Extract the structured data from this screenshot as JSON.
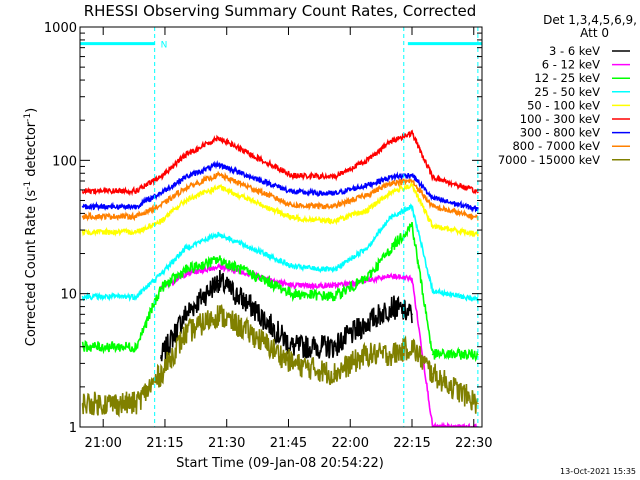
{
  "chart_data": {
    "type": "line",
    "title": "RHESSI Observing Summary Count Rates, Corrected",
    "xlabel": "Start Time (09-Jan-08 20:54:22)",
    "ylabel": "Corrected Count Rate (s",
    "ylabel_sup1": "-1",
    "ylabel_mid": " detector",
    "ylabel_sup2": "-1",
    "ylabel_end": ")",
    "y_scale": "log",
    "ylim": [
      1,
      1000
    ],
    "xlim": [
      "20:54:22",
      "22:32:00"
    ],
    "x_ticks": [
      "21:00",
      "21:15",
      "21:30",
      "21:45",
      "22:00",
      "22:15",
      "22:30"
    ],
    "y_ticks": [
      "1",
      "10",
      "100",
      "1000"
    ],
    "legend_header": [
      "Det 1,3,4,5,6,9,",
      "Att 0"
    ],
    "timestamp": "13-Oct-2021 15:35",
    "flag_label": "N",
    "flags": [
      {
        "start": "20:54:22",
        "end": "21:12:30",
        "value": 750
      },
      {
        "start": "22:14:00",
        "end": "22:32:00",
        "value": 750
      }
    ],
    "vertical_markers": [
      "21:12:30",
      "22:13:00",
      "22:31:00"
    ],
    "x": [
      "20:55",
      "21:08",
      "21:14",
      "21:20",
      "21:28",
      "21:36",
      "21:46",
      "21:56",
      "22:04",
      "22:10",
      "22:15",
      "22:20",
      "22:31"
    ],
    "series": [
      {
        "name": "3 - 6 keV",
        "color": "#000000",
        "values": [
          null,
          null,
          3.3,
          7,
          12.5,
          8,
          4,
          4,
          6,
          8,
          7,
          null,
          null
        ]
      },
      {
        "name": "6 - 12 keV",
        "color": "#ff00ff",
        "values": [
          null,
          null,
          11,
          14,
          16,
          14,
          11.5,
          11.5,
          12.5,
          13.5,
          13,
          1,
          1
        ]
      },
      {
        "name": "12 - 25 keV",
        "color": "#00ff00",
        "values": [
          4,
          4,
          11,
          15,
          18,
          14,
          10,
          9.5,
          13,
          22,
          33,
          3.5,
          3.5
        ]
      },
      {
        "name": "25 - 50 keV",
        "color": "#00ffff",
        "values": [
          9.5,
          9.5,
          14,
          22,
          28,
          22,
          16,
          15,
          22,
          38,
          45,
          10.5,
          9
        ]
      },
      {
        "name": "50 - 100 keV",
        "color": "#ffff00",
        "values": [
          29,
          29,
          35,
          50,
          63,
          50,
          37,
          35,
          42,
          58,
          65,
          32,
          28
        ]
      },
      {
        "name": "100 - 300 keV",
        "color": "#ff0000",
        "values": [
          59,
          59,
          75,
          110,
          148,
          110,
          77,
          75,
          100,
          140,
          160,
          75,
          58
        ]
      },
      {
        "name": "300 - 800 keV",
        "color": "#0000ff",
        "values": [
          45,
          45,
          57,
          75,
          93,
          75,
          58,
          56,
          65,
          75,
          78,
          52,
          43
        ]
      },
      {
        "name": "800 - 7000 keV",
        "color": "#ff8000",
        "values": [
          38,
          38,
          46,
          62,
          78,
          62,
          46,
          45,
          55,
          68,
          70,
          45,
          37
        ]
      },
      {
        "name": "7000 - 15000 keV",
        "color": "#808000",
        "values": [
          1.5,
          1.5,
          2.5,
          5,
          7,
          5,
          3,
          2.5,
          3.5,
          3.5,
          4,
          2.5,
          1.5
        ]
      }
    ]
  }
}
